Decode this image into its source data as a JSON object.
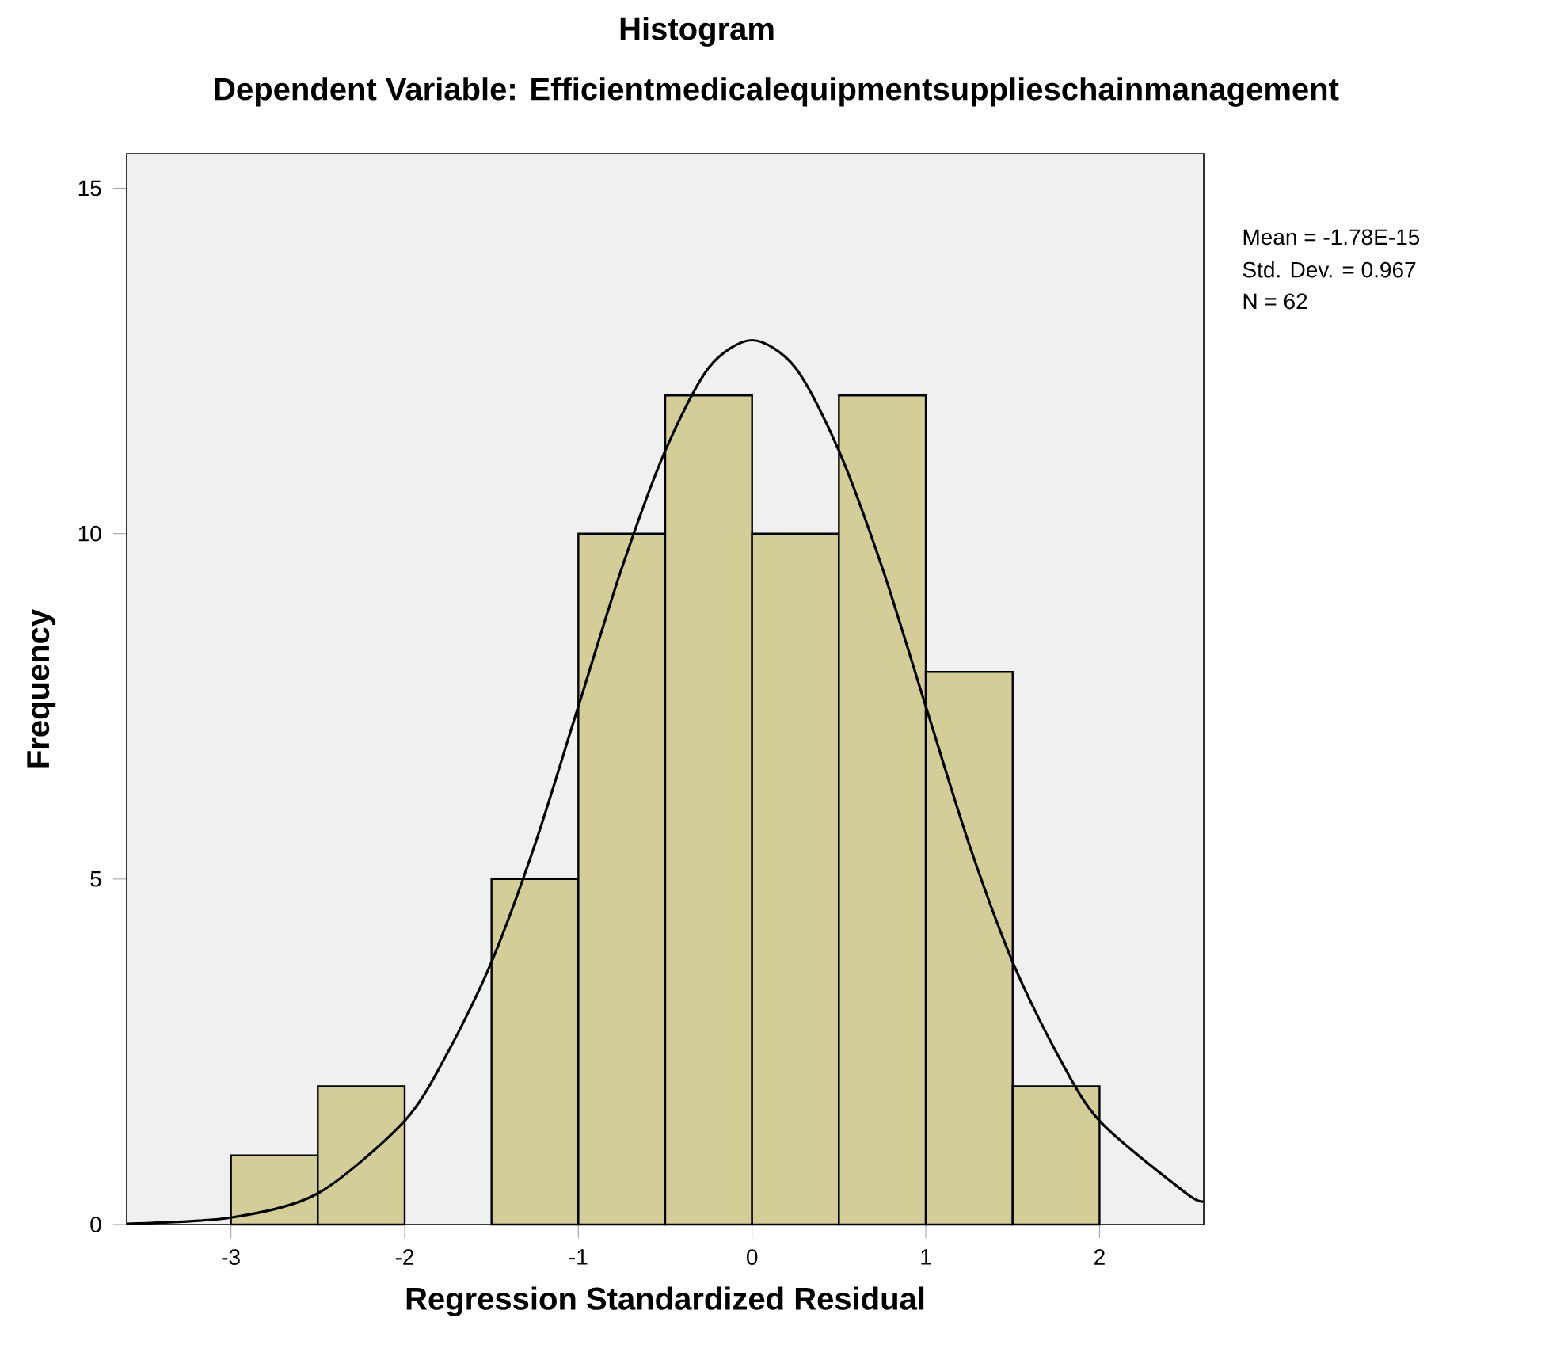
{
  "chart_data": {
    "type": "histogram",
    "title": "Histogram",
    "subtitle": "Dependent Variable: Efficientmedicalequipmentsupplieschainmanagement",
    "xlabel": "Regression Standardized Residual",
    "ylabel": "Frequency",
    "bins": [
      -3,
      -2.5,
      -2,
      -1.5,
      -1,
      -0.5,
      0,
      0.5,
      1,
      1.5,
      2
    ],
    "series": [
      {
        "color": "#d3ce97",
        "values": [
          1,
          2,
          0,
          5,
          10,
          12,
          10,
          12,
          8,
          2
        ]
      },
      {
        "type": "line",
        "color": "#000000",
        "x": [
          -3.6,
          -3,
          -2.5,
          -2,
          -1.75,
          -1.5,
          -1.25,
          -1,
          -0.75,
          -0.5,
          -0.25,
          0,
          0.25,
          0.5,
          0.75,
          1,
          1.25,
          1.5,
          1.75,
          2,
          2.5,
          2.6
        ],
        "values": [
          0.01,
          0.1,
          0.45,
          1.5,
          2.5,
          3.8,
          5.5,
          7.5,
          9.5,
          11.2,
          12.4,
          12.8,
          12.4,
          11.2,
          9.5,
          7.5,
          5.5,
          3.8,
          2.5,
          1.5,
          0.45,
          0.34
        ]
      }
    ],
    "xlim": [
      -3.6,
      2.6
    ],
    "ylim": [
      0,
      15.5
    ],
    "xticks": [
      -3,
      -2,
      -1,
      0,
      1,
      2
    ],
    "yticks": [
      0,
      5,
      10,
      15
    ],
    "annotations": [
      "Mean = -1.78E-15",
      "Std. Dev. = 0.967",
      "N = 62"
    ]
  }
}
